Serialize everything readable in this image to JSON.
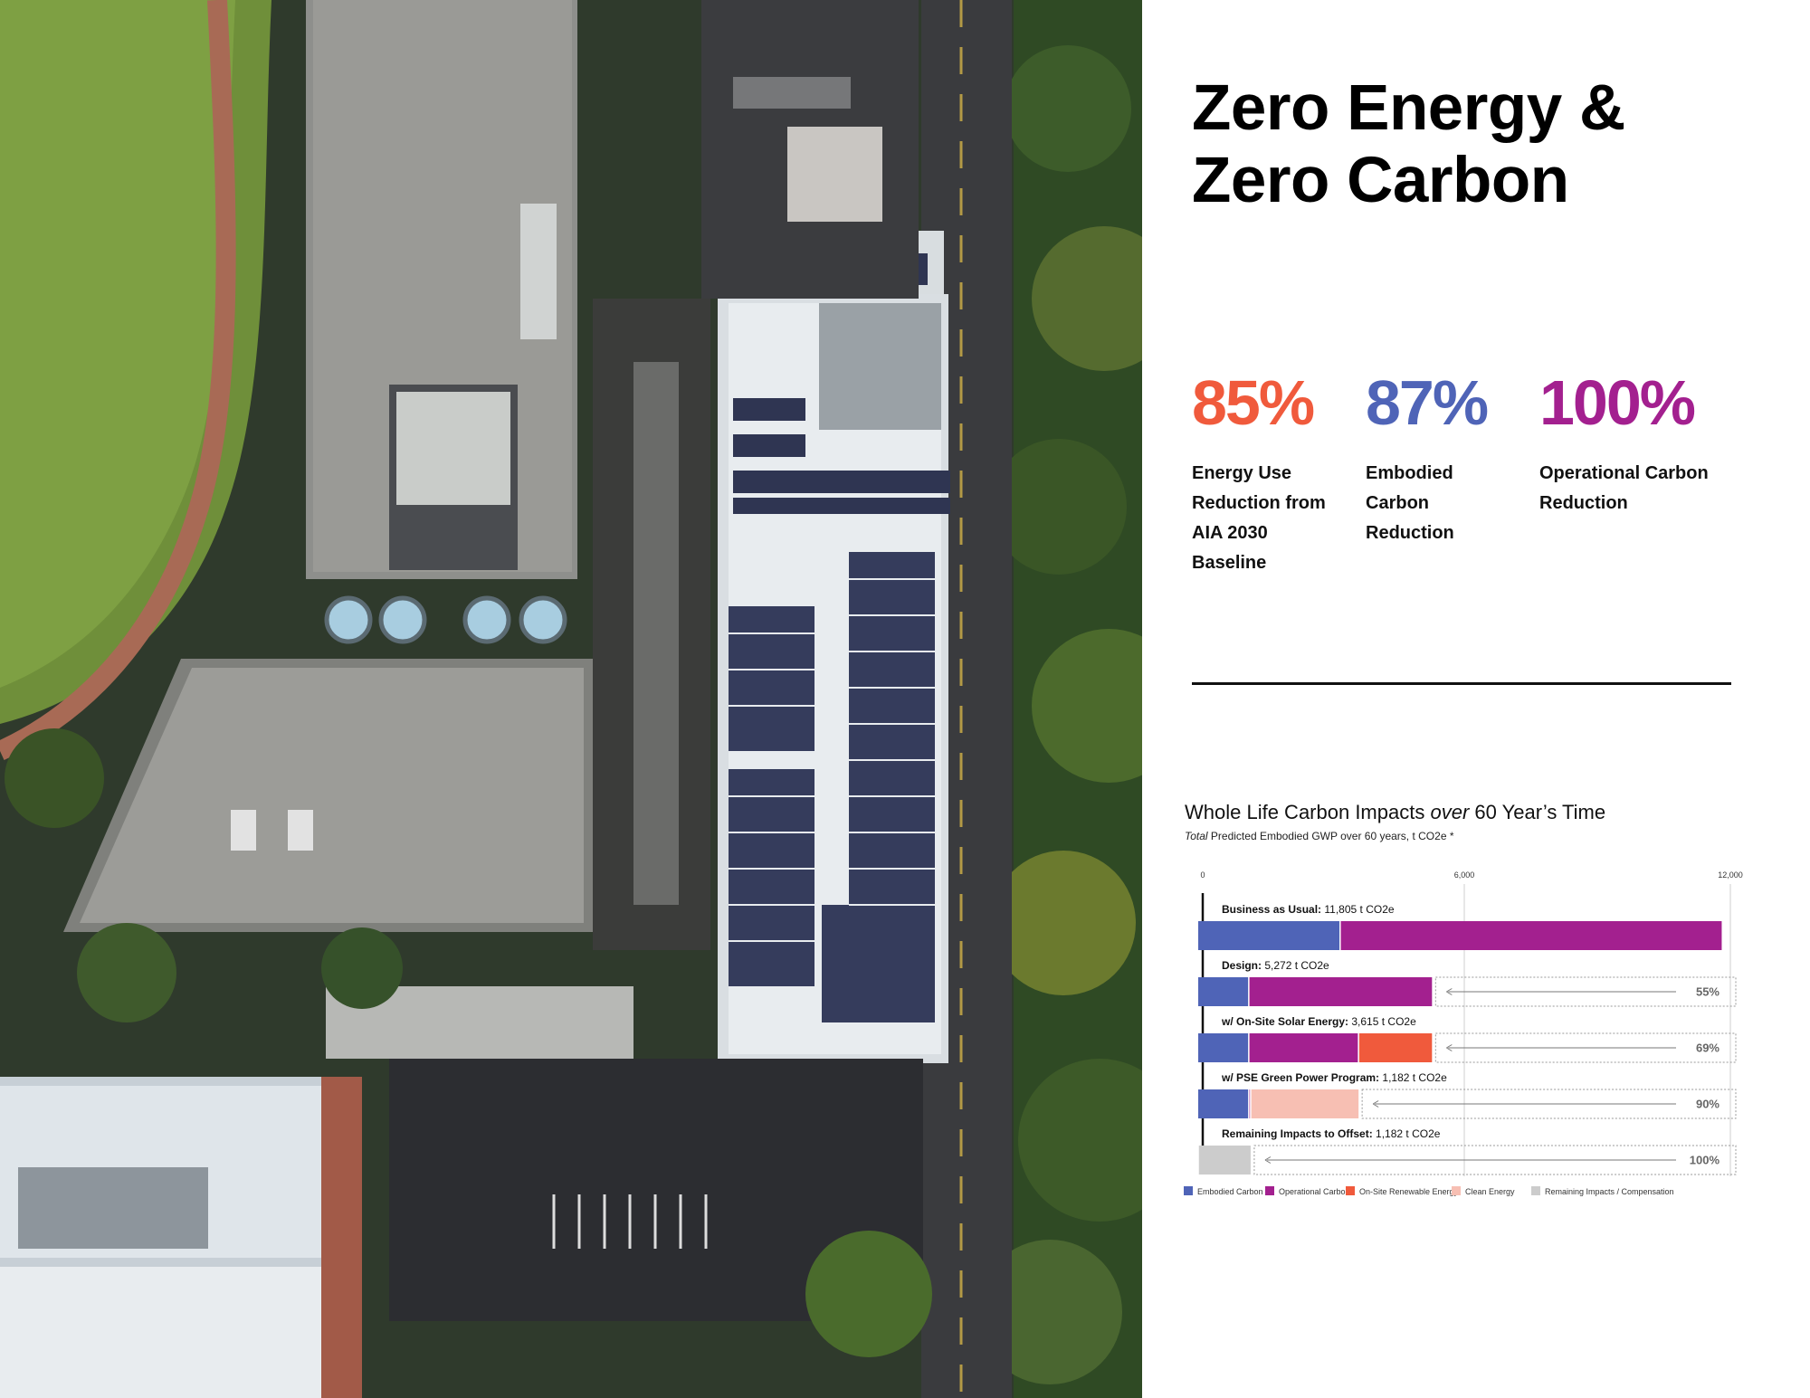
{
  "header": {
    "title_line1": "Zero Energy &",
    "title_line2": "Zero Carbon"
  },
  "stats": [
    {
      "value": "85%",
      "color": "#f05a3c",
      "label_lines": [
        "Energy Use",
        "Reduction from",
        "AIA 2030",
        "Baseline"
      ]
    },
    {
      "value": "87%",
      "color": "#4f64b7",
      "label_lines": [
        "Embodied",
        "Carbon",
        "Reduction"
      ]
    },
    {
      "value": "100%",
      "color": "#a3208f",
      "label_lines": [
        "Operational Carbon",
        "Reduction"
      ]
    }
  ],
  "chart_data": {
    "type": "bar",
    "orientation": "horizontal",
    "stacked": true,
    "title_main": "Whole Life Carbon Impacts",
    "title_italic": "over",
    "title_tail": "60 Year’s Time",
    "subtitle_italic": "Total",
    "subtitle_rest": "Predicted Embodied GWP over 60 years, t CO2e *",
    "xlim": [
      0,
      12000
    ],
    "ticks": [
      0,
      6000,
      12000
    ],
    "tick_labels": [
      "0",
      "6,000",
      "12,000"
    ],
    "series": [
      {
        "name": "Embodied Carbon",
        "color": "#4f64b7"
      },
      {
        "name": "Operational Carbon",
        "color": "#a3208f"
      },
      {
        "name": "On-Site Renewable Energy",
        "color": "#f05a3c"
      },
      {
        "name": "Clean Energy",
        "color": "#f7bfb3"
      },
      {
        "name": "Remaining Impacts / Compensation",
        "color": "#cccccc"
      }
    ],
    "rows": [
      {
        "label_bold": "Business as Usual:",
        "label_value": "11,805 t CO2e",
        "segments": [
          3200,
          8605,
          0,
          0,
          0
        ],
        "reduction": ""
      },
      {
        "label_bold": "Design:",
        "label_value": "5,272 t CO2e",
        "segments": [
          1140,
          4132,
          0,
          0,
          0
        ],
        "reduction": "55%"
      },
      {
        "label_bold": "w/ On-Site Solar Energy:",
        "label_value": "3,615 t CO2e",
        "segments": [
          1140,
          2475,
          1657,
          0,
          0
        ],
        "reduction": "69%"
      },
      {
        "label_bold": "w/ PSE Green Power Program:",
        "label_value": "1,182 t CO2e",
        "segments": [
          1140,
          42,
          0,
          2433,
          0
        ],
        "reduction": "90%"
      },
      {
        "label_bold": "Remaining Impacts to Offset:",
        "label_value": "1,182 t CO2e",
        "segments": [
          0,
          0,
          0,
          0,
          1182
        ],
        "reduction": "100%"
      }
    ]
  }
}
